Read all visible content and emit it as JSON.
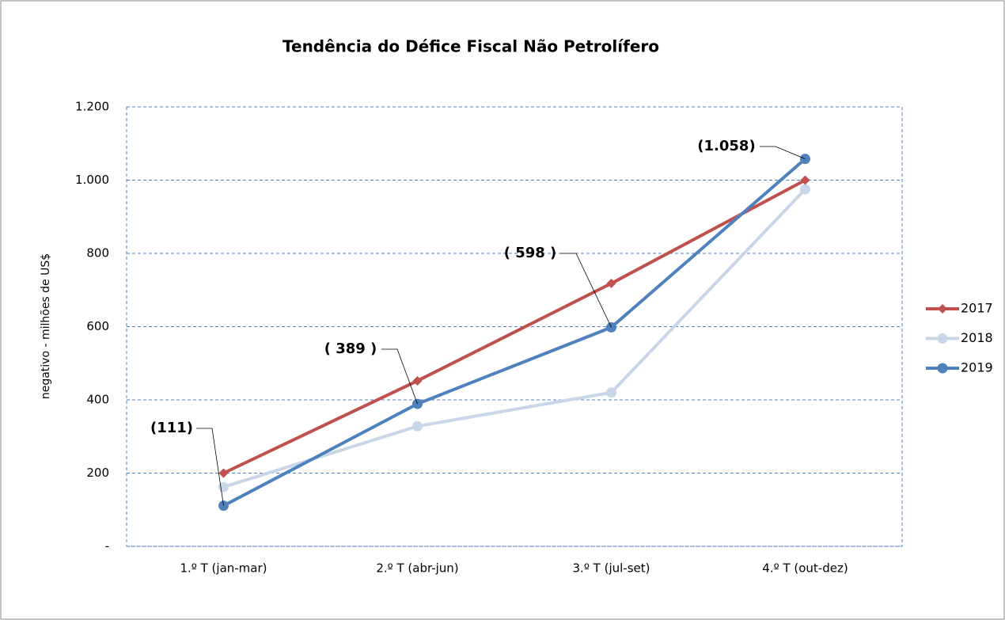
{
  "chart_data": {
    "type": "line",
    "title": "Tendência do Défice Fiscal Não Petrolífero",
    "y_label": "negativo - milhões de US$",
    "categories": [
      "1.º T (jan-mar)",
      "2.º T (abr-jun)",
      "3.º T (jul-set)",
      "4.º T (out-dez)"
    ],
    "series": [
      {
        "name": "2017",
        "color": "#c0504d",
        "marker": "diamond",
        "values": [
          200,
          452,
          718,
          1000
        ]
      },
      {
        "name": "2018",
        "color": "#c9d6e8",
        "marker": "circle",
        "values": [
          162,
          328,
          420,
          975
        ]
      },
      {
        "name": "2019",
        "color": "#4f81bd",
        "marker": "circle",
        "values": [
          111,
          389,
          598,
          1058
        ],
        "value_labels": [
          "(111)",
          "( 389 )",
          "( 598 )",
          "(1.058)"
        ]
      }
    ],
    "ylim": [
      0,
      1200
    ],
    "yticks": [
      {
        "value": 0,
        "label": "-"
      },
      200,
      400,
      600,
      800,
      {
        "value": 1000,
        "label": "1.000"
      },
      {
        "value": 1200,
        "label": "1.200"
      }
    ],
    "grid": true,
    "legend": "right"
  }
}
